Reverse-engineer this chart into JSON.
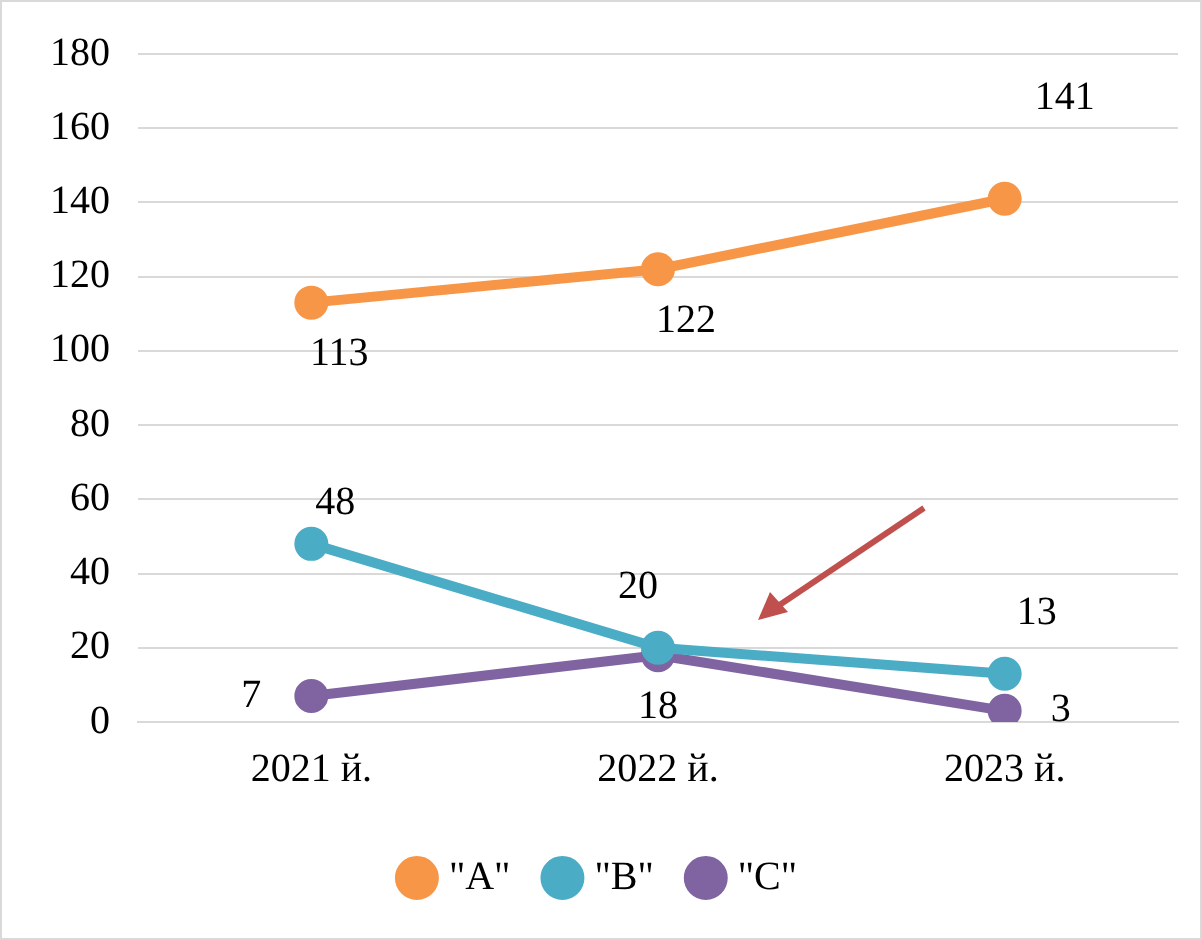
{
  "chart_data": {
    "type": "line",
    "categories": [
      "2021 й.",
      "2022 й.",
      "2023 й."
    ],
    "series": [
      {
        "name": "\"A\"",
        "color": "#f79646",
        "values": [
          113,
          122,
          141
        ]
      },
      {
        "name": "\"B\"",
        "color": "#4bacc6",
        "values": [
          48,
          20,
          13
        ]
      },
      {
        "name": "\"C\"",
        "color": "#8064a2",
        "values": [
          7,
          18,
          3
        ]
      }
    ],
    "ylim": [
      0,
      180
    ],
    "yticks": [
      0,
      20,
      40,
      60,
      80,
      100,
      120,
      140,
      160,
      180
    ],
    "grid": "y",
    "legend": "bottom",
    "marker": "circle",
    "line_style": "solid",
    "data_labels": true
  }
}
